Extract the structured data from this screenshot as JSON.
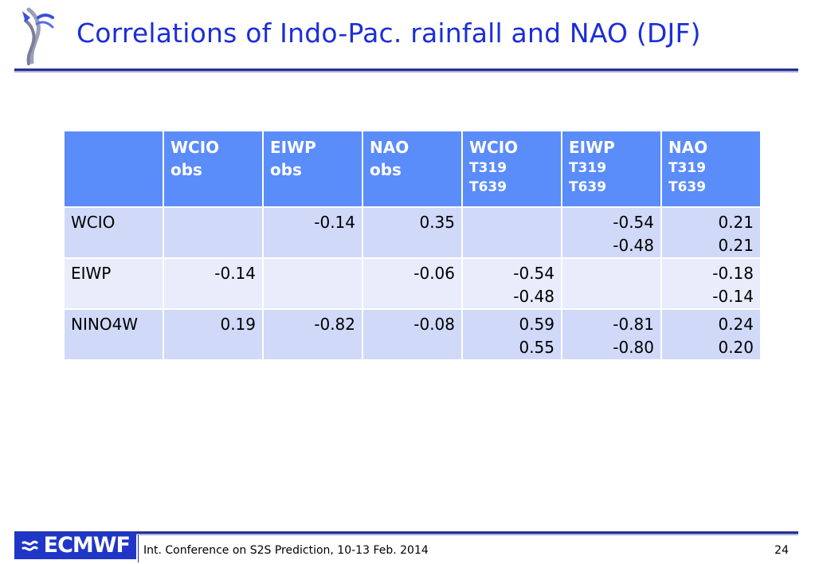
{
  "title": "Correlations of Indo-Pac. rainfall and NAO (DJF)",
  "table": {
    "headers": [
      {
        "main": "",
        "line2": "",
        "sub": []
      },
      {
        "main": "WCIO",
        "line2": "obs",
        "sub": []
      },
      {
        "main": "EIWP",
        "line2": "obs",
        "sub": []
      },
      {
        "main": "NAO",
        "line2": "obs",
        "sub": []
      },
      {
        "main": "WCIO",
        "line2": "",
        "sub": [
          "T319",
          "T639"
        ]
      },
      {
        "main": "EIWP",
        "line2": "",
        "sub": [
          "T319",
          "T639"
        ]
      },
      {
        "main": "NAO",
        "line2": "",
        "sub": [
          "T319",
          "T639"
        ]
      }
    ],
    "rows": [
      {
        "label": "WCIO",
        "cells": [
          [
            ""
          ],
          [
            "-0.14"
          ],
          [
            "0.35"
          ],
          [
            ""
          ],
          [
            "-0.54",
            "-0.48"
          ],
          [
            "0.21",
            "0.21"
          ]
        ]
      },
      {
        "label": "EIWP",
        "cells": [
          [
            "-0.14"
          ],
          [
            ""
          ],
          [
            "-0.06"
          ],
          [
            "-0.54",
            "-0.48"
          ],
          [
            ""
          ],
          [
            "-0.18",
            "-0.14"
          ]
        ]
      },
      {
        "label": "NINO4W",
        "cells": [
          [
            "0.19"
          ],
          [
            "-0.82"
          ],
          [
            "-0.08"
          ],
          [
            "0.59",
            "0.55"
          ],
          [
            "-0.81",
            "-0.80"
          ],
          [
            "0.24",
            "0.20"
          ]
        ]
      }
    ]
  },
  "footer": {
    "logo_text": "ECMWF",
    "text": "Int. Conference on S2S Prediction, 10-13 Feb. 2014",
    "page_number": "24"
  },
  "colors": {
    "title": "#1c2ed6",
    "header_bg": "#5a8cfa",
    "row_dark": "#d0d9f8",
    "row_light": "#e8ecfb",
    "rule": "#27308f",
    "logo_bg": "#1f36c7"
  }
}
